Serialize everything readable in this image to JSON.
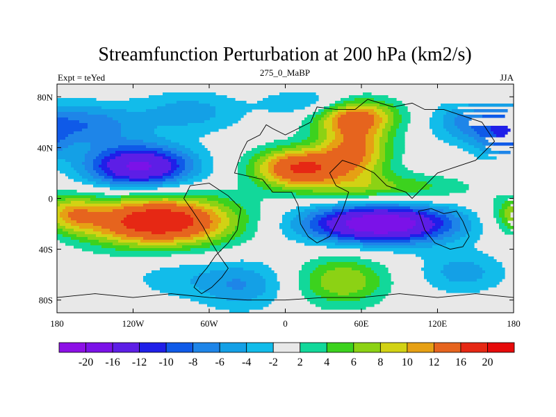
{
  "chart_data": {
    "type": "heatmap",
    "title": "Streamfunction Perturbation at 200 hPa (km2/s)",
    "left_string": "Expt = teYed",
    "center_string": "275_0_MaBP",
    "right_string": "JJA",
    "xlim": [
      -180,
      180
    ],
    "ylim": [
      -90,
      90
    ],
    "x_ticks": [
      {
        "value": -180,
        "label": "180"
      },
      {
        "value": -120,
        "label": "120W"
      },
      {
        "value": -60,
        "label": "60W"
      },
      {
        "value": 0,
        "label": "0"
      },
      {
        "value": 60,
        "label": "60E"
      },
      {
        "value": 120,
        "label": "120E"
      },
      {
        "value": 180,
        "label": "180"
      }
    ],
    "y_ticks": [
      {
        "value": 80,
        "label": "80N"
      },
      {
        "value": 40,
        "label": "40N"
      },
      {
        "value": 0,
        "label": "0"
      },
      {
        "value": -40,
        "label": "40S"
      },
      {
        "value": -80,
        "label": "80S"
      }
    ],
    "colorbar": {
      "levels": [
        -20,
        -16,
        -12,
        -10,
        -8,
        -6,
        -4,
        -2,
        2,
        4,
        6,
        8,
        10,
        12,
        16,
        20
      ],
      "labels": [
        "-20",
        "-16",
        "-12",
        "-10",
        "-8",
        "-6",
        "-4",
        "-2",
        "2",
        "4",
        "6",
        "8",
        "10",
        "12",
        "16",
        "20"
      ],
      "colors": [
        "#8d10e6",
        "#7b12e8",
        "#5d1ee6",
        "#1f1fe8",
        "#0f5ae8",
        "#1e85e8",
        "#14a0e6",
        "#12bcea",
        "#e8e8e8",
        "#12d89a",
        "#3cd21e",
        "#8cd214",
        "#d2d214",
        "#e6a014",
        "#e6641e",
        "#e62814",
        "#e60a0a"
      ]
    },
    "centers": [
      {
        "lon": -115,
        "lat": 25,
        "amp": -17,
        "sx": 30,
        "sy": 12
      },
      {
        "lon": -155,
        "lat": 58,
        "amp": -7,
        "sx": 30,
        "sy": 12
      },
      {
        "lon": -75,
        "lat": 68,
        "amp": -5,
        "sx": 30,
        "sy": 12
      },
      {
        "lon": 150,
        "lat": 60,
        "amp": -7,
        "sx": 25,
        "sy": 12
      },
      {
        "lon": 170,
        "lat": 42,
        "amp": -5,
        "sx": 14,
        "sy": 10
      },
      {
        "lon": -100,
        "lat": -18,
        "amp": 20,
        "sx": 42,
        "sy": 14
      },
      {
        "lon": -170,
        "lat": -12,
        "amp": 8,
        "sx": 16,
        "sy": 10
      },
      {
        "lon": 10,
        "lat": 24,
        "amp": 16,
        "sx": 25,
        "sy": 11
      },
      {
        "lon": 55,
        "lat": 38,
        "amp": 12,
        "sx": 20,
        "sy": 16
      },
      {
        "lon": 55,
        "lat": 65,
        "amp": 12,
        "sx": 24,
        "sy": 10
      },
      {
        "lon": 80,
        "lat": 8,
        "amp": 6,
        "sx": 45,
        "sy": 8
      },
      {
        "lon": 75,
        "lat": -20,
        "amp": -20,
        "sx": 42,
        "sy": 11
      },
      {
        "lon": -35,
        "lat": -68,
        "amp": -6,
        "sx": 25,
        "sy": 14
      },
      {
        "lon": -90,
        "lat": -62,
        "amp": -3,
        "sx": 25,
        "sy": 12
      },
      {
        "lon": 140,
        "lat": -58,
        "amp": -5,
        "sx": 25,
        "sy": 12
      },
      {
        "lon": 45,
        "lat": -65,
        "amp": 8,
        "sx": 25,
        "sy": 14
      },
      {
        "lon": 20,
        "lat": 75,
        "amp": -5,
        "sx": 25,
        "sy": 8
      }
    ],
    "continents": [
      [
        [
          -75,
          10
        ],
        [
          -60,
          12
        ],
        [
          -45,
          2
        ],
        [
          -35,
          -8
        ],
        [
          -38,
          -25
        ],
        [
          -45,
          -35
        ],
        [
          -55,
          -45
        ],
        [
          -62,
          -55
        ],
        [
          -68,
          -62
        ],
        [
          -72,
          -70
        ],
        [
          -66,
          -75
        ],
        [
          -58,
          -70
        ],
        [
          -50,
          -62
        ],
        [
          -45,
          -55
        ],
        [
          -52,
          -45
        ],
        [
          -58,
          -35
        ],
        [
          -65,
          -22
        ],
        [
          -73,
          -10
        ],
        [
          -80,
          0
        ]
      ],
      [
        [
          -40,
          20
        ],
        [
          -35,
          35
        ],
        [
          -30,
          45
        ],
        [
          -20,
          50
        ],
        [
          -15,
          58
        ],
        [
          -10,
          55
        ],
        [
          0,
          50
        ],
        [
          10,
          55
        ],
        [
          20,
          60
        ],
        [
          25,
          72
        ],
        [
          40,
          70
        ],
        [
          55,
          70
        ],
        [
          65,
          78
        ],
        [
          85,
          72
        ],
        [
          100,
          75
        ],
        [
          110,
          70
        ],
        [
          125,
          70
        ],
        [
          140,
          65
        ],
        [
          155,
          60
        ],
        [
          165,
          45
        ],
        [
          150,
          30
        ],
        [
          135,
          25
        ],
        [
          120,
          20
        ],
        [
          110,
          10
        ],
        [
          100,
          0
        ],
        [
          95,
          5
        ],
        [
          80,
          10
        ],
        [
          70,
          20
        ],
        [
          60,
          25
        ],
        [
          45,
          30
        ],
        [
          35,
          20
        ],
        [
          40,
          10
        ],
        [
          50,
          5
        ],
        [
          45,
          -10
        ],
        [
          40,
          -20
        ],
        [
          35,
          -30
        ],
        [
          25,
          -35
        ],
        [
          18,
          -30
        ],
        [
          12,
          -20
        ],
        [
          10,
          -5
        ],
        [
          5,
          5
        ],
        [
          -10,
          5
        ],
        [
          -18,
          15
        ]
      ],
      [
        [
          105,
          -10
        ],
        [
          115,
          -8
        ],
        [
          125,
          -12
        ],
        [
          135,
          -10
        ],
        [
          140,
          -18
        ],
        [
          145,
          -30
        ],
        [
          140,
          -38
        ],
        [
          130,
          -40
        ],
        [
          118,
          -35
        ],
        [
          110,
          -25
        ]
      ],
      [
        [
          -180,
          -78
        ],
        [
          -150,
          -75
        ],
        [
          -120,
          -78
        ],
        [
          -90,
          -75
        ],
        [
          -60,
          -78
        ],
        [
          -30,
          -80
        ],
        [
          0,
          -80
        ],
        [
          30,
          -78
        ],
        [
          60,
          -78
        ],
        [
          90,
          -75
        ],
        [
          120,
          -78
        ],
        [
          150,
          -75
        ],
        [
          180,
          -78
        ],
        [
          180,
          -90
        ],
        [
          -180,
          -90
        ]
      ]
    ]
  }
}
